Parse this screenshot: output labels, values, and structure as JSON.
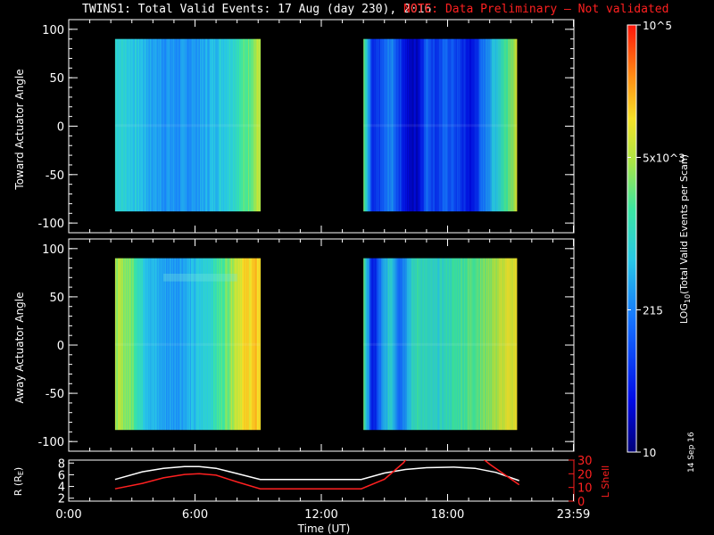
{
  "title": {
    "main": "TWINS1: Total Valid Events: 17 Aug (day 230), 2016",
    "note": "NOTE: Data Preliminary — Not validated"
  },
  "stamp": "14 Sep 16",
  "colors": {
    "background": "#000000",
    "note": "#ff2020",
    "r_line": "#ffffff",
    "lshell_line": "#ff2020"
  },
  "chart_data": [
    {
      "type": "heatmap",
      "ylabel": "Toward Actuator Angle",
      "ylim": [
        -110,
        110
      ],
      "yticks": [
        100,
        50,
        0,
        -50,
        -100
      ],
      "xlim": [
        0,
        24
      ],
      "segments": [
        {
          "start": 2.2,
          "end": 9.1,
          "angle_range": [
            -88,
            90
          ],
          "base_levels": [
            0.5,
            0.48,
            0.46,
            0.44,
            0.4,
            0.38,
            0.37,
            0.36,
            0.36,
            0.37,
            0.38,
            0.42,
            0.45,
            0.48,
            0.52,
            0.58,
            0.64,
            0.72
          ]
        },
        {
          "start": 14.0,
          "end": 21.3,
          "angle_range": [
            -88,
            90
          ],
          "base_levels": [
            0.6,
            0.15,
            0.25,
            0.35,
            0.22,
            0.08,
            0.1,
            0.3,
            0.2,
            0.28,
            0.25,
            0.18,
            0.12,
            0.28,
            0.4,
            0.5,
            0.62,
            0.72
          ]
        }
      ]
    },
    {
      "type": "heatmap",
      "ylabel": "Away Actuator Angle",
      "ylim": [
        -110,
        110
      ],
      "yticks": [
        100,
        50,
        0,
        -50,
        -100
      ],
      "xlim": [
        0,
        24
      ],
      "segments": [
        {
          "start": 2.2,
          "end": 9.1,
          "angle_range": [
            -88,
            90
          ],
          "base_levels": [
            0.68,
            0.66,
            0.62,
            0.5,
            0.44,
            0.4,
            0.38,
            0.38,
            0.4,
            0.42,
            0.46,
            0.5,
            0.56,
            0.62,
            0.72,
            0.78,
            0.8,
            0.8
          ]
        },
        {
          "start": 14.0,
          "end": 21.3,
          "angle_range": [
            -88,
            90
          ],
          "base_levels": [
            0.6,
            0.12,
            0.35,
            0.5,
            0.3,
            0.45,
            0.55,
            0.5,
            0.48,
            0.52,
            0.55,
            0.58,
            0.6,
            0.62,
            0.66,
            0.7,
            0.74,
            0.76
          ]
        }
      ]
    },
    {
      "type": "line",
      "xlabel": "Time (UT)",
      "xticks": [
        "0:00",
        "6:00",
        "12:00",
        "18:00",
        "23:59"
      ],
      "xtick_values": [
        0,
        6,
        12,
        18,
        23.98
      ],
      "left_ylabel": "R (RE)",
      "left_ylim": [
        1.5,
        8.5
      ],
      "left_yticks": [
        8,
        6,
        4,
        2
      ],
      "right_ylabel": "L Shell",
      "right_ylim": [
        0,
        30
      ],
      "right_yticks": [
        30,
        20,
        10,
        0
      ],
      "series": [
        {
          "axis": "left",
          "points": [
            [
              2.2,
              5.2
            ],
            [
              3.5,
              6.5
            ],
            [
              4.5,
              7.1
            ],
            [
              5.5,
              7.4
            ],
            [
              6.2,
              7.4
            ],
            [
              7,
              7.1
            ],
            [
              8,
              6.2
            ],
            [
              9.1,
              5.2
            ],
            [
              13.9,
              5.2
            ],
            [
              15,
              6.3
            ],
            [
              16,
              6.9
            ],
            [
              17,
              7.2
            ],
            [
              18.3,
              7.3
            ],
            [
              19.3,
              7.1
            ],
            [
              20.3,
              6.4
            ],
            [
              21.4,
              5.0
            ]
          ]
        },
        {
          "axis": "right",
          "points": [
            [
              2.2,
              9
            ],
            [
              3.5,
              13
            ],
            [
              4.5,
              17
            ],
            [
              5.5,
              19.5
            ],
            [
              6.2,
              20
            ],
            [
              7,
              19
            ],
            [
              8,
              14
            ],
            [
              9.1,
              9
            ],
            [
              13.9,
              9
            ],
            [
              15,
              16
            ],
            [
              15.9,
              28
            ],
            [
              16.1,
              32
            ]
          ]
        },
        {
          "axis": "right",
          "points": [
            [
              19.6,
              32
            ],
            [
              20,
              27
            ],
            [
              21.4,
              12
            ]
          ]
        }
      ]
    }
  ],
  "colorbar": {
    "label": "LOG10(Total Valid Events per Scan)",
    "label_main": "LOG",
    "label_sub": "10",
    "label_rest": "(Total Valid Events per Scan)",
    "ticks": [
      {
        "text": "10",
        "level": 0.0
      },
      {
        "text": "215",
        "level": 0.333
      },
      {
        "text": "5x10^3",
        "level": 0.69
      },
      {
        "text": "10^5",
        "level": 1.0
      }
    ]
  },
  "lshell_label": "L Shell",
  "r_label_main": "R (R",
  "r_label_sub": "E",
  "r_label_end": ")"
}
